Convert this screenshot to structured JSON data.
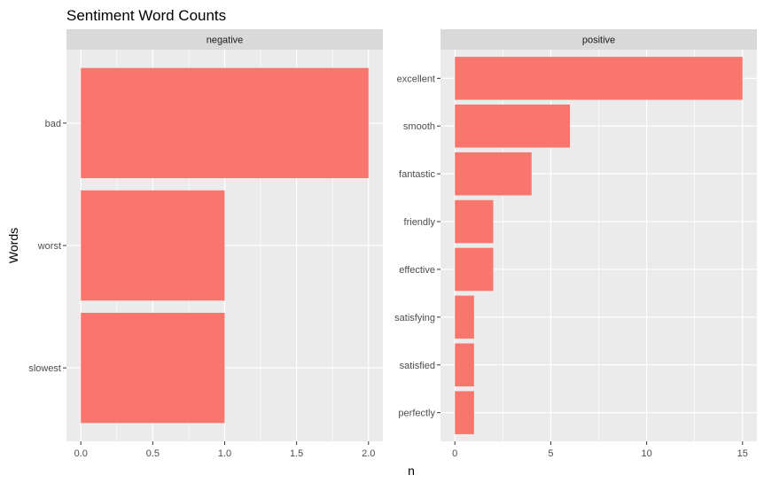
{
  "chart_data": {
    "type": "bar",
    "orientation": "horizontal",
    "title": "Sentiment Word Counts",
    "xlabel": "n",
    "ylabel": "Words",
    "grid": true,
    "bar_color": "#F8766D",
    "panel_background": "#EBEBEB",
    "strip_background": "#D9D9D9",
    "grid_color": "#FFFFFF",
    "panels": [
      {
        "name": "negative",
        "categories": [
          "bad",
          "worst",
          "slowest"
        ],
        "values": [
          2,
          1,
          1
        ],
        "xlim": [
          -0.1,
          2.1
        ],
        "xticks": [
          0,
          0.5,
          1,
          1.5,
          2
        ],
        "xtick_labels": [
          "0.0",
          "0.5",
          "1.0",
          "1.5",
          "2.0"
        ]
      },
      {
        "name": "positive",
        "categories": [
          "excellent",
          "smooth",
          "fantastic",
          "friendly",
          "effective",
          "satisfying",
          "satisfied",
          "perfectly"
        ],
        "values": [
          15,
          6,
          4,
          2,
          2,
          1,
          1,
          1
        ],
        "xlim": [
          -0.75,
          15.75
        ],
        "xticks": [
          0,
          5,
          10,
          15
        ],
        "xtick_labels": [
          "0",
          "5",
          "10",
          "15"
        ]
      }
    ]
  }
}
